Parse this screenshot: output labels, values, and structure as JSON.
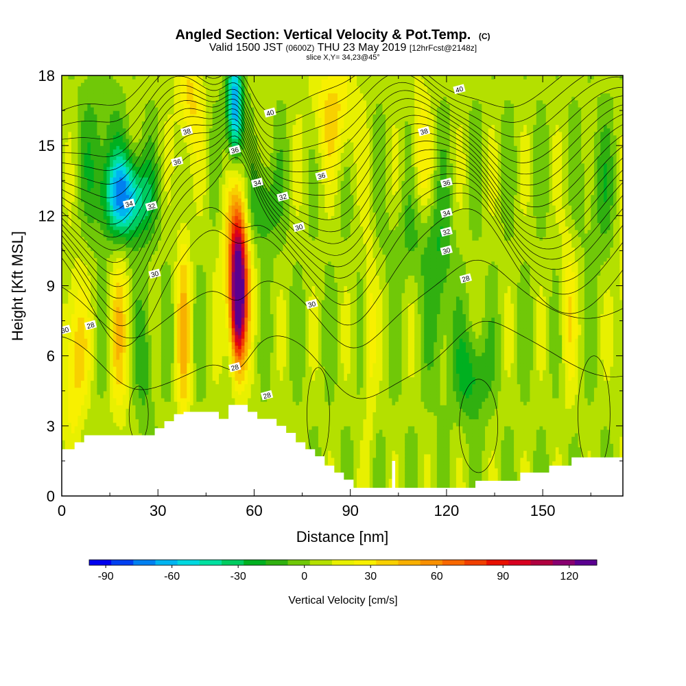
{
  "chart_data": {
    "type": "heatmap",
    "title": "Angled Section: Vertical Velocity & Pot.Temp.",
    "title_suffix": "(C)",
    "subtitle_main_a": "Valid 1500 JST",
    "subtitle_small_a": "(0600Z)",
    "subtitle_main_b": "THU 23 May 2019",
    "subtitle_small_b": "[12hrFcst@2148z]",
    "subtitle2": "slice X,Y= 34,23@45°",
    "xlabel": "Distance [nm]",
    "ylabel": "Height [Kft MSL]",
    "xlim": [
      0,
      175
    ],
    "ylim": [
      0,
      18
    ],
    "xticks": [
      "0",
      "30",
      "60",
      "90",
      "120",
      "150"
    ],
    "yticks": [
      "0",
      "3",
      "6",
      "9",
      "12",
      "15",
      "18"
    ],
    "colorbar": {
      "label": "Vertical Velocity [cm/s]",
      "ticks": [
        "-90",
        "-60",
        "-30",
        "0",
        "30",
        "60",
        "90",
        "120"
      ],
      "colors": [
        "#0000ee",
        "#0040f0",
        "#0080f0",
        "#00b4f0",
        "#00d8e0",
        "#00e0a0",
        "#00cc60",
        "#00b020",
        "#30b010",
        "#70c808",
        "#b4e000",
        "#e8f000",
        "#f8f000",
        "#f8d000",
        "#f8b000",
        "#f89000",
        "#f86800",
        "#f04000",
        "#e81000",
        "#d80020",
        "#b00040",
        "#880070",
        "#5a0090"
      ]
    },
    "contour_labels": [
      "40",
      "40",
      "38",
      "38",
      "36",
      "36",
      "36",
      "36",
      "34",
      "34",
      "34",
      "32",
      "32",
      "32",
      "30",
      "30",
      "30",
      "30",
      "30",
      "28",
      "28",
      "28",
      "28"
    ]
  }
}
